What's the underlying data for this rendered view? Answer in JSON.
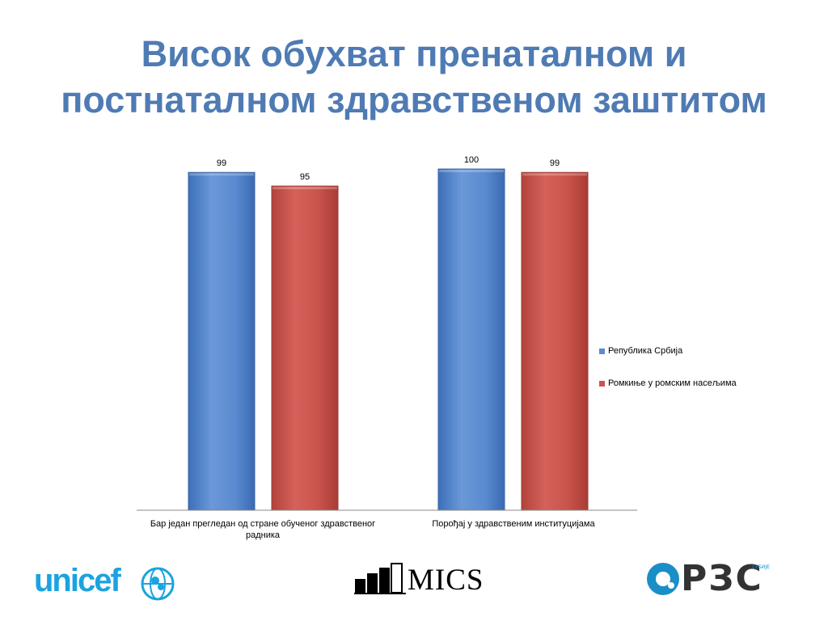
{
  "title": {
    "line1": "Висок обухват пренаталном и",
    "line2": "постнаталном здравственом заштитом"
  },
  "chart_data": {
    "type": "bar",
    "categories": [
      "Бар један прегледан од стране обученог здравственог радника",
      "Порођај у здравственим институцијама"
    ],
    "series": [
      {
        "name": "Република Србија",
        "values": [
          99,
          100
        ],
        "color": "#5b8bd0"
      },
      {
        "name": "Ромкиње у ромским насељима",
        "values": [
          95,
          99
        ],
        "color": "#c9544c"
      }
    ],
    "ylim": [
      0,
      100
    ],
    "xlabel": "",
    "ylabel": "",
    "grid": false,
    "legend": "right"
  },
  "labels": {
    "cat1_line1": "Бар један прегледан од стране обученог здравственог",
    "cat1_line2": "радника",
    "cat2": "Порођај у здравственим институцијама"
  },
  "legend": {
    "item1": "Република Србија",
    "item2": "Ромкиње у ромским насељима"
  },
  "logos": {
    "unicef": "unicef",
    "mics": "MICS",
    "rzs": "РЗС",
    "rzs_sub": "СРБИЈЕ"
  }
}
